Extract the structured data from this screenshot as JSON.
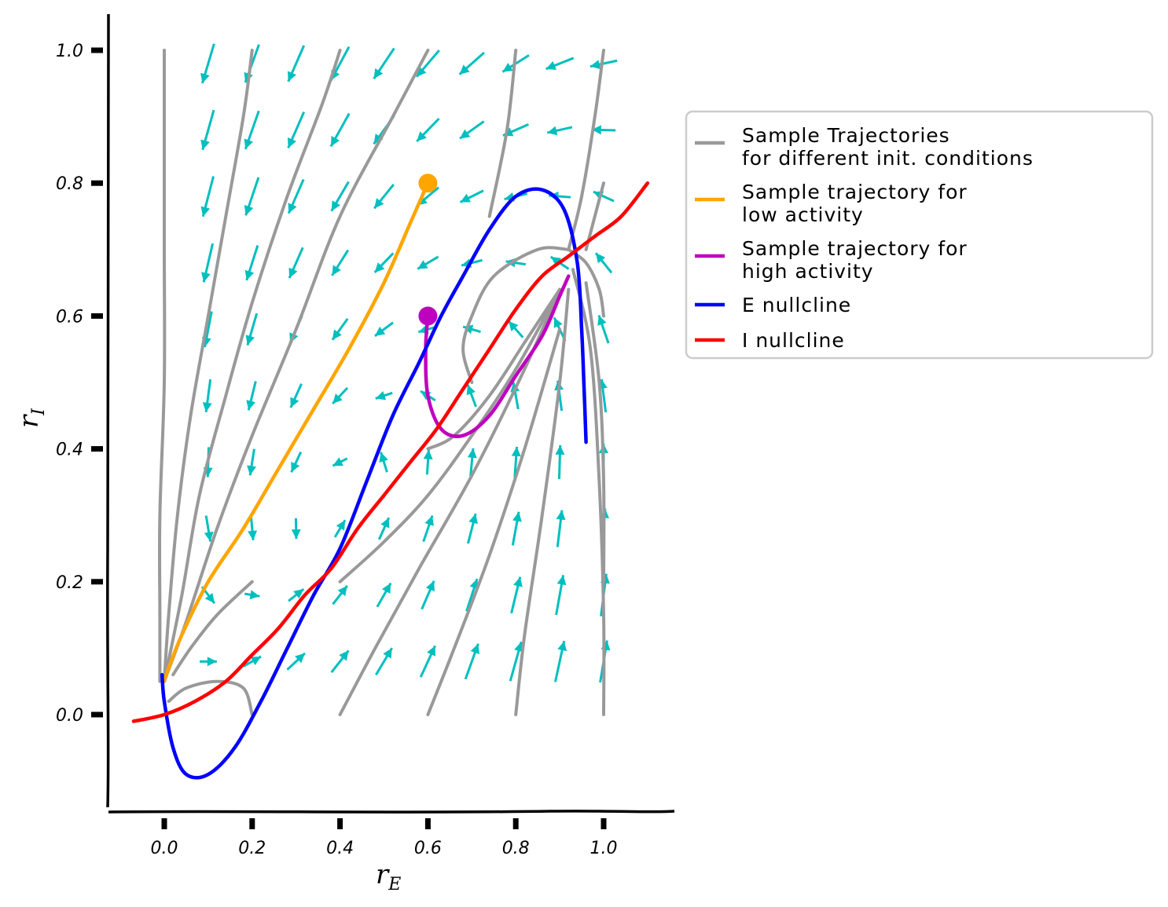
{
  "chart_data": {
    "type": "line",
    "xlabel": "r",
    "xlabel_sub": "E",
    "ylabel": "r",
    "ylabel_sub": "I",
    "xlim": [
      -0.13,
      1.16
    ],
    "ylim": [
      -0.14,
      1.05
    ],
    "xticks": [
      0.0,
      0.2,
      0.4,
      0.6,
      0.8,
      1.0
    ],
    "yticks": [
      0.0,
      0.2,
      0.4,
      0.6,
      0.8,
      1.0
    ],
    "xtick_labels": [
      "0.0",
      "0.2",
      "0.4",
      "0.6",
      "0.8",
      "1.0"
    ],
    "ytick_labels": [
      "0.0",
      "0.2",
      "0.4",
      "0.6",
      "0.8",
      "1.0"
    ],
    "legend_position": "upper-right-outside",
    "colors": {
      "trajectories": "#999999",
      "low_activity": "#FFA500",
      "high_activity": "#BF00BF",
      "e_nullcline": "#0000FF",
      "i_nullcline": "#FF0000",
      "vector_field": "#00BFBF"
    },
    "series": [
      {
        "name": "Sample Trajectories\nfor different init. conditions",
        "color": "#999999",
        "lines": [
          [
            [
              0.0,
              1.0
            ],
            [
              0.0,
              0.9
            ],
            [
              0.0,
              0.7
            ],
            [
              0.0,
              0.5
            ],
            [
              -0.01,
              0.3
            ],
            [
              -0.01,
              0.15
            ],
            [
              -0.01,
              0.05
            ]
          ],
          [
            [
              0.2,
              1.0
            ],
            [
              0.18,
              0.9
            ],
            [
              0.14,
              0.75
            ],
            [
              0.1,
              0.6
            ],
            [
              0.06,
              0.45
            ],
            [
              0.03,
              0.3
            ],
            [
              0.01,
              0.15
            ],
            [
              0.0,
              0.05
            ]
          ],
          [
            [
              0.4,
              1.0
            ],
            [
              0.36,
              0.92
            ],
            [
              0.28,
              0.78
            ],
            [
              0.2,
              0.62
            ],
            [
              0.14,
              0.48
            ],
            [
              0.08,
              0.33
            ],
            [
              0.04,
              0.18
            ],
            [
              0.0,
              0.05
            ]
          ],
          [
            [
              0.6,
              1.0
            ],
            [
              0.52,
              0.9
            ],
            [
              0.4,
              0.75
            ],
            [
              0.3,
              0.58
            ],
            [
              0.2,
              0.42
            ],
            [
              0.12,
              0.28
            ],
            [
              0.05,
              0.14
            ],
            [
              0.0,
              0.05
            ]
          ],
          [
            [
              0.8,
              1.0
            ],
            [
              0.78,
              0.88
            ],
            [
              0.74,
              0.75
            ]
          ],
          [
            [
              1.0,
              1.0
            ],
            [
              0.98,
              0.9
            ],
            [
              0.95,
              0.78
            ],
            [
              0.92,
              0.7
            ]
          ],
          [
            [
              1.0,
              0.8
            ],
            [
              0.98,
              0.75
            ],
            [
              0.96,
              0.7
            ]
          ],
          [
            [
              1.0,
              0.6
            ],
            [
              0.99,
              0.64
            ],
            [
              0.96,
              0.68
            ],
            [
              0.92,
              0.7
            ]
          ],
          [
            [
              0.7,
              0.5
            ],
            [
              0.68,
              0.55
            ],
            [
              0.7,
              0.6
            ],
            [
              0.75,
              0.66
            ],
            [
              0.85,
              0.7
            ],
            [
              0.92,
              0.7
            ]
          ],
          [
            [
              0.6,
              0.4
            ],
            [
              0.66,
              0.42
            ],
            [
              0.74,
              0.48
            ],
            [
              0.82,
              0.56
            ],
            [
              0.9,
              0.64
            ]
          ],
          [
            [
              0.4,
              0.2
            ],
            [
              0.5,
              0.26
            ],
            [
              0.6,
              0.33
            ],
            [
              0.7,
              0.42
            ],
            [
              0.8,
              0.52
            ],
            [
              0.9,
              0.64
            ]
          ],
          [
            [
              0.4,
              0.0
            ],
            [
              0.48,
              0.1
            ],
            [
              0.58,
              0.22
            ],
            [
              0.7,
              0.36
            ],
            [
              0.82,
              0.52
            ],
            [
              0.9,
              0.64
            ]
          ],
          [
            [
              0.6,
              0.0
            ],
            [
              0.66,
              0.1
            ],
            [
              0.74,
              0.24
            ],
            [
              0.82,
              0.4
            ],
            [
              0.9,
              0.58
            ]
          ],
          [
            [
              0.8,
              0.0
            ],
            [
              0.82,
              0.12
            ],
            [
              0.86,
              0.3
            ],
            [
              0.9,
              0.5
            ],
            [
              0.92,
              0.64
            ]
          ],
          [
            [
              1.0,
              0.0
            ],
            [
              1.0,
              0.15
            ],
            [
              0.99,
              0.35
            ],
            [
              0.97,
              0.55
            ],
            [
              0.93,
              0.67
            ]
          ],
          [
            [
              1.0,
              0.2
            ],
            [
              1.0,
              0.35
            ],
            [
              0.99,
              0.5
            ],
            [
              0.96,
              0.65
            ]
          ],
          [
            [
              0.2,
              0.0
            ],
            [
              0.18,
              0.04
            ],
            [
              0.12,
              0.05
            ],
            [
              0.05,
              0.04
            ],
            [
              0.01,
              0.02
            ]
          ],
          [
            [
              0.2,
              0.2
            ],
            [
              0.12,
              0.15
            ],
            [
              0.06,
              0.1
            ],
            [
              0.02,
              0.06
            ]
          ]
        ]
      },
      {
        "name": "Sample trajectory for\nlow activity",
        "color": "#FFA500",
        "points": [
          [
            0.6,
            0.8
          ],
          [
            0.56,
            0.74
          ],
          [
            0.5,
            0.65
          ],
          [
            0.42,
            0.55
          ],
          [
            0.34,
            0.46
          ],
          [
            0.26,
            0.37
          ],
          [
            0.18,
            0.28
          ],
          [
            0.1,
            0.2
          ],
          [
            0.04,
            0.12
          ],
          [
            0.01,
            0.07
          ],
          [
            0.0,
            0.05
          ]
        ],
        "start": [
          0.6,
          0.8
        ]
      },
      {
        "name": "Sample trajectory for\nhigh activity",
        "color": "#BF00BF",
        "points": [
          [
            0.6,
            0.6
          ],
          [
            0.595,
            0.55
          ],
          [
            0.6,
            0.48
          ],
          [
            0.63,
            0.43
          ],
          [
            0.68,
            0.42
          ],
          [
            0.74,
            0.45
          ],
          [
            0.8,
            0.51
          ],
          [
            0.86,
            0.57
          ],
          [
            0.9,
            0.63
          ],
          [
            0.92,
            0.66
          ]
        ],
        "start": [
          0.6,
          0.6
        ]
      },
      {
        "name": "E nullcline",
        "color": "#0000FF",
        "points": [
          [
            -0.005,
            0.06
          ],
          [
            0.0,
            0.02
          ],
          [
            0.02,
            -0.05
          ],
          [
            0.05,
            -0.09
          ],
          [
            0.1,
            -0.09
          ],
          [
            0.16,
            -0.05
          ],
          [
            0.22,
            0.02
          ],
          [
            0.28,
            0.1
          ],
          [
            0.34,
            0.18
          ],
          [
            0.4,
            0.25
          ],
          [
            0.46,
            0.35
          ],
          [
            0.52,
            0.45
          ],
          [
            0.58,
            0.53
          ],
          [
            0.63,
            0.6
          ],
          [
            0.68,
            0.66
          ],
          [
            0.74,
            0.73
          ],
          [
            0.8,
            0.78
          ],
          [
            0.86,
            0.79
          ],
          [
            0.91,
            0.76
          ],
          [
            0.94,
            0.68
          ],
          [
            0.95,
            0.58
          ],
          [
            0.955,
            0.5
          ],
          [
            0.96,
            0.41
          ]
        ]
      },
      {
        "name": "I nullcline",
        "color": "#FF0000",
        "points": [
          [
            -0.07,
            -0.01
          ],
          [
            0.0,
            0.0
          ],
          [
            0.07,
            0.02
          ],
          [
            0.14,
            0.05
          ],
          [
            0.2,
            0.09
          ],
          [
            0.26,
            0.13
          ],
          [
            0.32,
            0.18
          ],
          [
            0.38,
            0.22
          ],
          [
            0.44,
            0.28
          ],
          [
            0.5,
            0.33
          ],
          [
            0.56,
            0.38
          ],
          [
            0.62,
            0.43
          ],
          [
            0.68,
            0.49
          ],
          [
            0.74,
            0.55
          ],
          [
            0.8,
            0.61
          ],
          [
            0.86,
            0.66
          ],
          [
            0.92,
            0.69
          ],
          [
            0.98,
            0.72
          ],
          [
            1.04,
            0.75
          ],
          [
            1.1,
            0.8
          ]
        ]
      }
    ],
    "vector_field": {
      "grid_x": [
        0.0,
        0.1,
        0.2,
        0.3,
        0.4,
        0.5,
        0.6,
        0.7,
        0.8,
        0.9
      ],
      "grid_y": [
        0.0,
        0.1,
        0.2,
        0.3,
        0.4,
        0.5,
        0.6,
        0.7,
        0.8,
        0.9
      ]
    }
  },
  "legend": [
    {
      "key": "traj",
      "line1": "Sample Trajectories",
      "line2": "for different init. conditions",
      "color": "#999999"
    },
    {
      "key": "low",
      "line1": "Sample trajectory for",
      "line2": "low activity",
      "color": "#FFA500"
    },
    {
      "key": "high",
      "line1": "Sample trajectory for",
      "line2": "high activity",
      "color": "#BF00BF"
    },
    {
      "key": "enull",
      "line1": "E nullcline",
      "line2": "",
      "color": "#0000FF"
    },
    {
      "key": "inull",
      "line1": "I nullcline",
      "line2": "",
      "color": "#FF0000"
    }
  ]
}
